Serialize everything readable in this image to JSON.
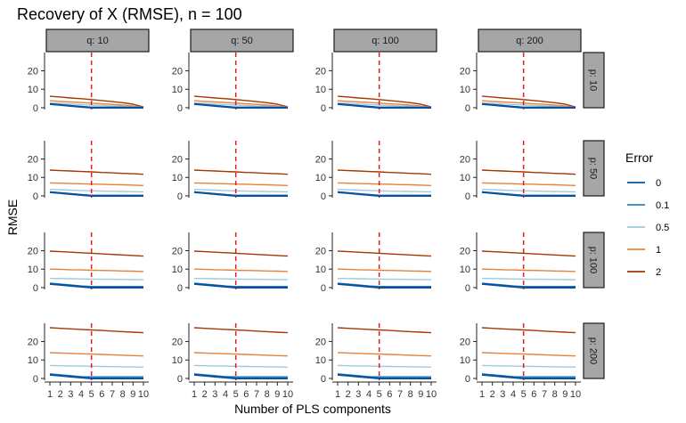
{
  "chart_data": {
    "type": "line",
    "title": "Recovery of X (RMSE), n = 100",
    "xlabel": "Number of PLS components",
    "ylabel": "RMSE",
    "x": [
      1,
      2,
      3,
      4,
      5,
      6,
      7,
      8,
      9,
      10
    ],
    "x_ticks": [
      "1",
      "2",
      "3",
      "4",
      "5",
      "6",
      "7",
      "8",
      "9",
      "10"
    ],
    "y_ticks": [
      0,
      10,
      20
    ],
    "ylim": [
      -1,
      28
    ],
    "reference_line": {
      "x": 5,
      "color": "#e41a1c",
      "style": "dashed"
    },
    "col_facets": [
      "q: 10",
      "q: 50",
      "q: 100",
      "q: 200"
    ],
    "row_facets": [
      "p: 10",
      "p: 50",
      "p: 100",
      "p: 200"
    ],
    "legend": {
      "title": "Error",
      "position": "right",
      "items": [
        {
          "label": "0",
          "color": "#08519c"
        },
        {
          "label": "0.1",
          "color": "#3182bd"
        },
        {
          "label": "0.5",
          "color": "#9ecae1"
        },
        {
          "label": "1",
          "color": "#e6813a"
        },
        {
          "label": "2",
          "color": "#a63603"
        }
      ]
    },
    "strip_color": "#a6a6a6",
    "grid": false,
    "series_by_row": [
      [
        {
          "name": "0",
          "values": [
            2.0,
            1.5,
            1.0,
            0.5,
            0.0,
            0.0,
            0.0,
            0.0,
            0.0,
            0.0
          ]
        },
        {
          "name": "0.1",
          "values": [
            2.1,
            1.6,
            1.1,
            0.6,
            0.2,
            0.2,
            0.2,
            0.15,
            0.1,
            0.05
          ]
        },
        {
          "name": "0.5",
          "values": [
            2.6,
            2.3,
            2.0,
            1.7,
            1.4,
            1.2,
            1.0,
            0.8,
            0.5,
            0.2
          ]
        },
        {
          "name": "1",
          "values": [
            3.8,
            3.4,
            3.1,
            2.8,
            2.5,
            2.1,
            1.8,
            1.4,
            0.9,
            0.3
          ]
        },
        {
          "name": "2",
          "values": [
            6.2,
            5.8,
            5.3,
            4.9,
            4.4,
            3.9,
            3.3,
            2.7,
            1.9,
            0.4
          ]
        }
      ],
      [
        {
          "name": "0",
          "values": [
            2.0,
            1.5,
            1.0,
            0.5,
            0.0,
            0.0,
            0.0,
            0.0,
            0.0,
            0.0
          ]
        },
        {
          "name": "0.1",
          "values": [
            2.2,
            1.7,
            1.2,
            0.7,
            0.3,
            0.3,
            0.3,
            0.3,
            0.3,
            0.3
          ]
        },
        {
          "name": "0.5",
          "values": [
            3.5,
            3.3,
            3.1,
            2.9,
            2.7,
            2.6,
            2.5,
            2.4,
            2.3,
            2.2
          ]
        },
        {
          "name": "1",
          "values": [
            7.0,
            6.9,
            6.7,
            6.6,
            6.4,
            6.3,
            6.1,
            6.0,
            5.8,
            5.6
          ]
        },
        {
          "name": "2",
          "values": [
            14.0,
            13.7,
            13.5,
            13.2,
            13.0,
            12.7,
            12.5,
            12.2,
            12.0,
            11.7
          ]
        }
      ],
      [
        {
          "name": "0",
          "values": [
            2.0,
            1.5,
            1.0,
            0.5,
            0.0,
            0.0,
            0.0,
            0.0,
            0.0,
            0.0
          ]
        },
        {
          "name": "0.1",
          "values": [
            2.4,
            1.9,
            1.4,
            0.9,
            0.6,
            0.6,
            0.6,
            0.6,
            0.6,
            0.6
          ]
        },
        {
          "name": "0.5",
          "values": [
            5.0,
            4.9,
            4.8,
            4.7,
            4.6,
            4.5,
            4.5,
            4.4,
            4.3,
            4.2
          ]
        },
        {
          "name": "1",
          "values": [
            10.0,
            9.9,
            9.7,
            9.6,
            9.4,
            9.3,
            9.2,
            9.0,
            8.9,
            8.7
          ]
        },
        {
          "name": "2",
          "values": [
            19.8,
            19.5,
            19.2,
            18.9,
            18.6,
            18.3,
            18.0,
            17.7,
            17.4,
            17.1
          ]
        }
      ],
      [
        {
          "name": "0",
          "values": [
            2.0,
            1.5,
            1.0,
            0.5,
            0.0,
            0.0,
            0.0,
            0.0,
            0.0,
            0.0
          ]
        },
        {
          "name": "0.1",
          "values": [
            2.5,
            2.0,
            1.5,
            1.0,
            0.9,
            0.9,
            0.9,
            0.9,
            0.9,
            0.9
          ]
        },
        {
          "name": "0.5",
          "values": [
            7.0,
            6.9,
            6.8,
            6.7,
            6.6,
            6.5,
            6.4,
            6.3,
            6.2,
            6.1
          ]
        },
        {
          "name": "1",
          "values": [
            14.0,
            13.8,
            13.6,
            13.4,
            13.2,
            13.0,
            12.8,
            12.6,
            12.4,
            12.2
          ]
        },
        {
          "name": "2",
          "values": [
            27.5,
            27.2,
            26.9,
            26.6,
            26.3,
            26.0,
            25.7,
            25.4,
            25.1,
            24.8
          ]
        }
      ]
    ]
  }
}
